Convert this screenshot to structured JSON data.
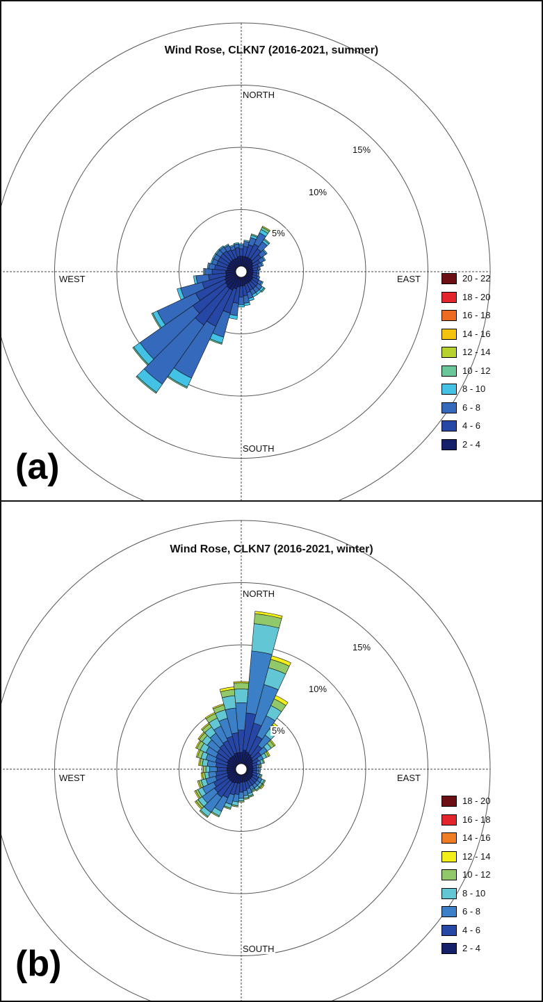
{
  "chart_data": [
    {
      "type": "windrose",
      "panel_label": "(a)",
      "title": "Wind Rose, CLKN7 (2016-2021, summer)",
      "directions": {
        "north": "NORTH",
        "south": "SOUTH",
        "east": "EAST",
        "west": "WEST"
      },
      "rings": [
        {
          "value": 5,
          "label": "5%"
        },
        {
          "value": 10,
          "label": "10%"
        },
        {
          "value": 15,
          "label": "15%"
        },
        {
          "value": 20,
          "label": ""
        }
      ],
      "sector_width_deg": 10,
      "bins": [
        {
          "label": "2 - 4",
          "color": "#15206b"
        },
        {
          "label": "4 - 6",
          "color": "#2747a6"
        },
        {
          "label": "6 - 8",
          "color": "#3569bb"
        },
        {
          "label": "8 - 10",
          "color": "#43c2e6"
        },
        {
          "label": "10 - 12",
          "color": "#6ac79a"
        },
        {
          "label": "12 - 14",
          "color": "#b7d22e"
        },
        {
          "label": "14 - 16",
          "color": "#f3c30d"
        },
        {
          "label": "16 - 18",
          "color": "#ef6a21"
        },
        {
          "label": "18 - 20",
          "color": "#e3242b"
        },
        {
          "label": "20 - 22",
          "color": "#6d0f12"
        }
      ],
      "sectors": [
        {
          "dir": 0,
          "values": [
            0.8,
            0.6,
            0.3,
            0.1,
            0.0,
            0.0
          ]
        },
        {
          "dir": 10,
          "values": [
            0.8,
            0.8,
            0.4,
            0.1,
            0.0,
            0.0
          ]
        },
        {
          "dir": 20,
          "values": [
            0.8,
            1.0,
            0.6,
            0.2,
            0.1,
            0.0
          ]
        },
        {
          "dir": 30,
          "values": [
            0.8,
            1.2,
            1.0,
            0.3,
            0.2,
            0.1
          ]
        },
        {
          "dir": 40,
          "values": [
            0.8,
            1.0,
            0.7,
            0.2,
            0.1,
            0.0
          ]
        },
        {
          "dir": 50,
          "values": [
            0.7,
            0.8,
            0.5,
            0.1,
            0.0,
            0.0
          ]
        },
        {
          "dir": 60,
          "values": [
            0.6,
            0.6,
            0.4,
            0.1,
            0.0,
            0.0
          ]
        },
        {
          "dir": 70,
          "values": [
            0.5,
            0.5,
            0.3,
            0.1,
            0.0,
            0.0
          ]
        },
        {
          "dir": 80,
          "values": [
            0.5,
            0.4,
            0.2,
            0.0,
            0.0,
            0.0
          ]
        },
        {
          "dir": 90,
          "values": [
            0.5,
            0.3,
            0.2,
            0.0,
            0.0,
            0.0
          ]
        },
        {
          "dir": 100,
          "values": [
            0.5,
            0.3,
            0.2,
            0.0,
            0.0,
            0.0
          ]
        },
        {
          "dir": 110,
          "values": [
            0.5,
            0.4,
            0.2,
            0.0,
            0.0,
            0.0
          ]
        },
        {
          "dir": 120,
          "values": [
            0.6,
            0.5,
            0.3,
            0.1,
            0.0,
            0.0
          ]
        },
        {
          "dir": 130,
          "values": [
            0.6,
            0.6,
            0.4,
            0.2,
            0.1,
            0.0
          ]
        },
        {
          "dir": 140,
          "values": [
            0.6,
            0.6,
            0.4,
            0.2,
            0.0,
            0.0
          ]
        },
        {
          "dir": 150,
          "values": [
            0.6,
            0.6,
            0.4,
            0.2,
            0.0,
            0.0
          ]
        },
        {
          "dir": 160,
          "values": [
            0.6,
            0.7,
            0.5,
            0.2,
            0.0,
            0.0
          ]
        },
        {
          "dir": 170,
          "values": [
            0.7,
            0.8,
            0.6,
            0.2,
            0.0,
            0.0
          ]
        },
        {
          "dir": 180,
          "values": [
            0.7,
            0.9,
            0.6,
            0.2,
            0.0,
            0.0
          ]
        },
        {
          "dir": 190,
          "values": [
            0.8,
            1.3,
            1.0,
            0.3,
            0.0,
            0.0
          ]
        },
        {
          "dir": 200,
          "values": [
            1.0,
            2.0,
            2.0,
            0.5,
            0.1,
            0.0
          ]
        },
        {
          "dir": 210,
          "values": [
            1.2,
            3.2,
            4.6,
            0.8,
            0.1,
            0.0
          ]
        },
        {
          "dir": 220,
          "values": [
            1.2,
            3.6,
            5.8,
            0.8,
            0.1,
            0.0
          ]
        },
        {
          "dir": 230,
          "values": [
            1.1,
            3.2,
            5.2,
            0.6,
            0.1,
            0.0
          ]
        },
        {
          "dir": 240,
          "values": [
            1.0,
            2.6,
            3.4,
            0.4,
            0.1,
            0.0
          ]
        },
        {
          "dir": 250,
          "values": [
            0.9,
            1.9,
            1.8,
            0.3,
            0.0,
            0.0
          ]
        },
        {
          "dir": 260,
          "values": [
            0.8,
            1.4,
            1.0,
            0.2,
            0.0,
            0.0
          ]
        },
        {
          "dir": 270,
          "values": [
            0.8,
            1.1,
            0.6,
            0.1,
            0.0,
            0.0
          ]
        },
        {
          "dir": 280,
          "values": [
            0.7,
            1.0,
            0.5,
            0.1,
            0.0,
            0.0
          ]
        },
        {
          "dir": 290,
          "values": [
            0.7,
            0.9,
            0.4,
            0.1,
            0.0,
            0.0
          ]
        },
        {
          "dir": 300,
          "values": [
            0.7,
            0.9,
            0.4,
            0.1,
            0.0,
            0.0
          ]
        },
        {
          "dir": 310,
          "values": [
            0.7,
            0.9,
            0.4,
            0.1,
            0.0,
            0.0
          ]
        },
        {
          "dir": 320,
          "values": [
            0.7,
            0.9,
            0.4,
            0.1,
            0.0,
            0.0
          ]
        },
        {
          "dir": 330,
          "values": [
            0.7,
            0.8,
            0.4,
            0.1,
            0.0,
            0.0
          ]
        },
        {
          "dir": 340,
          "values": [
            0.7,
            0.7,
            0.3,
            0.1,
            0.0,
            0.0
          ]
        },
        {
          "dir": 350,
          "values": [
            0.8,
            0.7,
            0.3,
            0.1,
            0.0,
            0.0
          ]
        }
      ]
    },
    {
      "type": "windrose",
      "panel_label": "(b)",
      "title": "Wind Rose, CLKN7 (2016-2021, winter)",
      "directions": {
        "north": "NORTH",
        "south": "SOUTH",
        "east": "EAST",
        "west": "WEST"
      },
      "rings": [
        {
          "value": 5,
          "label": "5%"
        },
        {
          "value": 10,
          "label": "10%"
        },
        {
          "value": 15,
          "label": "15%"
        },
        {
          "value": 20,
          "label": ""
        }
      ],
      "sector_width_deg": 10,
      "bins": [
        {
          "label": "2 - 4",
          "color": "#15206b"
        },
        {
          "label": "4 - 6",
          "color": "#2747a6"
        },
        {
          "label": "6 - 8",
          "color": "#3b7fc7"
        },
        {
          "label": "8 - 10",
          "color": "#62c6d4"
        },
        {
          "label": "10 - 12",
          "color": "#90c86a"
        },
        {
          "label": "12 - 14",
          "color": "#f2ee1a"
        },
        {
          "label": "14 - 16",
          "color": "#f07d24"
        },
        {
          "label": "16 - 18",
          "color": "#e3242b"
        },
        {
          "label": "18 - 20",
          "color": "#6d0f12"
        }
      ],
      "sectors": [
        {
          "dir": 0,
          "values": [
            0.9,
            1.8,
            2.2,
            1.1,
            0.5,
            0.1
          ]
        },
        {
          "dir": 10,
          "values": [
            1.1,
            3.0,
            5.0,
            2.2,
            0.8,
            0.2
          ]
        },
        {
          "dir": 20,
          "values": [
            1.0,
            2.4,
            3.2,
            1.4,
            0.7,
            0.3
          ]
        },
        {
          "dir": 30,
          "values": [
            0.9,
            1.6,
            1.8,
            0.9,
            0.6,
            0.3
          ]
        },
        {
          "dir": 40,
          "values": [
            0.8,
            1.1,
            1.0,
            0.6,
            0.4,
            0.2
          ]
        },
        {
          "dir": 50,
          "values": [
            0.7,
            0.8,
            0.6,
            0.4,
            0.3,
            0.1
          ]
        },
        {
          "dir": 60,
          "values": [
            0.6,
            0.5,
            0.4,
            0.3,
            0.2,
            0.1
          ]
        },
        {
          "dir": 70,
          "values": [
            0.5,
            0.4,
            0.3,
            0.2,
            0.1,
            0.0
          ]
        },
        {
          "dir": 80,
          "values": [
            0.5,
            0.3,
            0.2,
            0.1,
            0.1,
            0.0
          ]
        },
        {
          "dir": 90,
          "values": [
            0.5,
            0.3,
            0.2,
            0.1,
            0.0,
            0.0
          ]
        },
        {
          "dir": 100,
          "values": [
            0.5,
            0.3,
            0.2,
            0.1,
            0.0,
            0.0
          ]
        },
        {
          "dir": 110,
          "values": [
            0.5,
            0.4,
            0.2,
            0.1,
            0.1,
            0.0
          ]
        },
        {
          "dir": 120,
          "values": [
            0.6,
            0.5,
            0.3,
            0.2,
            0.1,
            0.0
          ]
        },
        {
          "dir": 130,
          "values": [
            0.6,
            0.5,
            0.3,
            0.2,
            0.1,
            0.1
          ]
        },
        {
          "dir": 140,
          "values": [
            0.6,
            0.5,
            0.3,
            0.2,
            0.1,
            0.0
          ]
        },
        {
          "dir": 150,
          "values": [
            0.6,
            0.5,
            0.3,
            0.1,
            0.1,
            0.0
          ]
        },
        {
          "dir": 160,
          "values": [
            0.6,
            0.6,
            0.4,
            0.2,
            0.1,
            0.0
          ]
        },
        {
          "dir": 170,
          "values": [
            0.6,
            0.7,
            0.4,
            0.2,
            0.1,
            0.0
          ]
        },
        {
          "dir": 180,
          "values": [
            0.6,
            0.8,
            0.5,
            0.2,
            0.1,
            0.0
          ]
        },
        {
          "dir": 190,
          "values": [
            0.7,
            0.9,
            0.6,
            0.3,
            0.1,
            0.0
          ]
        },
        {
          "dir": 200,
          "values": [
            0.7,
            1.0,
            0.8,
            0.3,
            0.1,
            0.0
          ]
        },
        {
          "dir": 210,
          "values": [
            0.8,
            1.3,
            1.2,
            0.4,
            0.1,
            0.0
          ]
        },
        {
          "dir": 220,
          "values": [
            0.8,
            1.5,
            1.5,
            0.4,
            0.1,
            0.0
          ]
        },
        {
          "dir": 230,
          "values": [
            0.8,
            1.4,
            1.2,
            0.4,
            0.2,
            0.1
          ]
        },
        {
          "dir": 240,
          "values": [
            0.8,
            1.2,
            1.0,
            0.4,
            0.2,
            0.1
          ]
        },
        {
          "dir": 250,
          "values": [
            0.7,
            1.0,
            0.8,
            0.4,
            0.2,
            0.1
          ]
        },
        {
          "dir": 260,
          "values": [
            0.7,
            0.9,
            0.6,
            0.3,
            0.2,
            0.1
          ]
        },
        {
          "dir": 270,
          "values": [
            0.7,
            0.8,
            0.6,
            0.3,
            0.2,
            0.1
          ]
        },
        {
          "dir": 280,
          "values": [
            0.7,
            0.9,
            0.7,
            0.4,
            0.2,
            0.1
          ]
        },
        {
          "dir": 290,
          "values": [
            0.7,
            1.0,
            0.8,
            0.4,
            0.3,
            0.1
          ]
        },
        {
          "dir": 300,
          "values": [
            0.8,
            1.0,
            0.9,
            0.5,
            0.3,
            0.1
          ]
        },
        {
          "dir": 310,
          "values": [
            0.8,
            1.1,
            1.0,
            0.5,
            0.3,
            0.1
          ]
        },
        {
          "dir": 320,
          "values": [
            0.8,
            1.2,
            1.1,
            0.6,
            0.3,
            0.1
          ]
        },
        {
          "dir": 330,
          "values": [
            0.8,
            1.3,
            1.3,
            0.7,
            0.4,
            0.1
          ]
        },
        {
          "dir": 340,
          "values": [
            0.9,
            1.4,
            1.5,
            0.7,
            0.4,
            0.1
          ]
        },
        {
          "dir": 350,
          "values": [
            0.9,
            1.6,
            2.0,
            1.0,
            0.5,
            0.2
          ]
        }
      ]
    }
  ]
}
